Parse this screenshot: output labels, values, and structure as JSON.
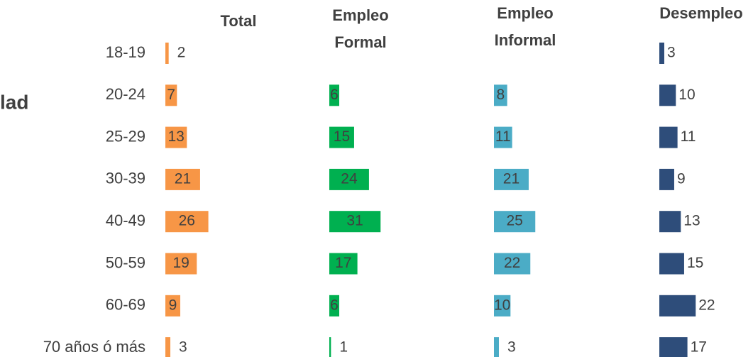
{
  "chart_data": {
    "type": "bar",
    "orientation": "horizontal",
    "side_label": "lad",
    "categories": [
      "18-19",
      "20-24",
      "25-29",
      "30-39",
      "40-49",
      "50-59",
      "60-69",
      "70 años ó más"
    ],
    "series": [
      {
        "name": "Total",
        "color": "#f79646",
        "values": [
          2,
          7,
          13,
          21,
          26,
          19,
          9,
          3
        ]
      },
      {
        "name": "Empleo Formal",
        "color": "#00b050",
        "values": [
          null,
          6,
          15,
          24,
          31,
          17,
          6,
          1
        ]
      },
      {
        "name": "Empleo Informal",
        "color": "#4bacc6",
        "values": [
          null,
          8,
          11,
          21,
          25,
          22,
          10,
          3
        ]
      },
      {
        "name": "Desempleo",
        "color": "#2e4d7a",
        "values": [
          3,
          10,
          11,
          9,
          13,
          15,
          22,
          17
        ]
      }
    ]
  }
}
